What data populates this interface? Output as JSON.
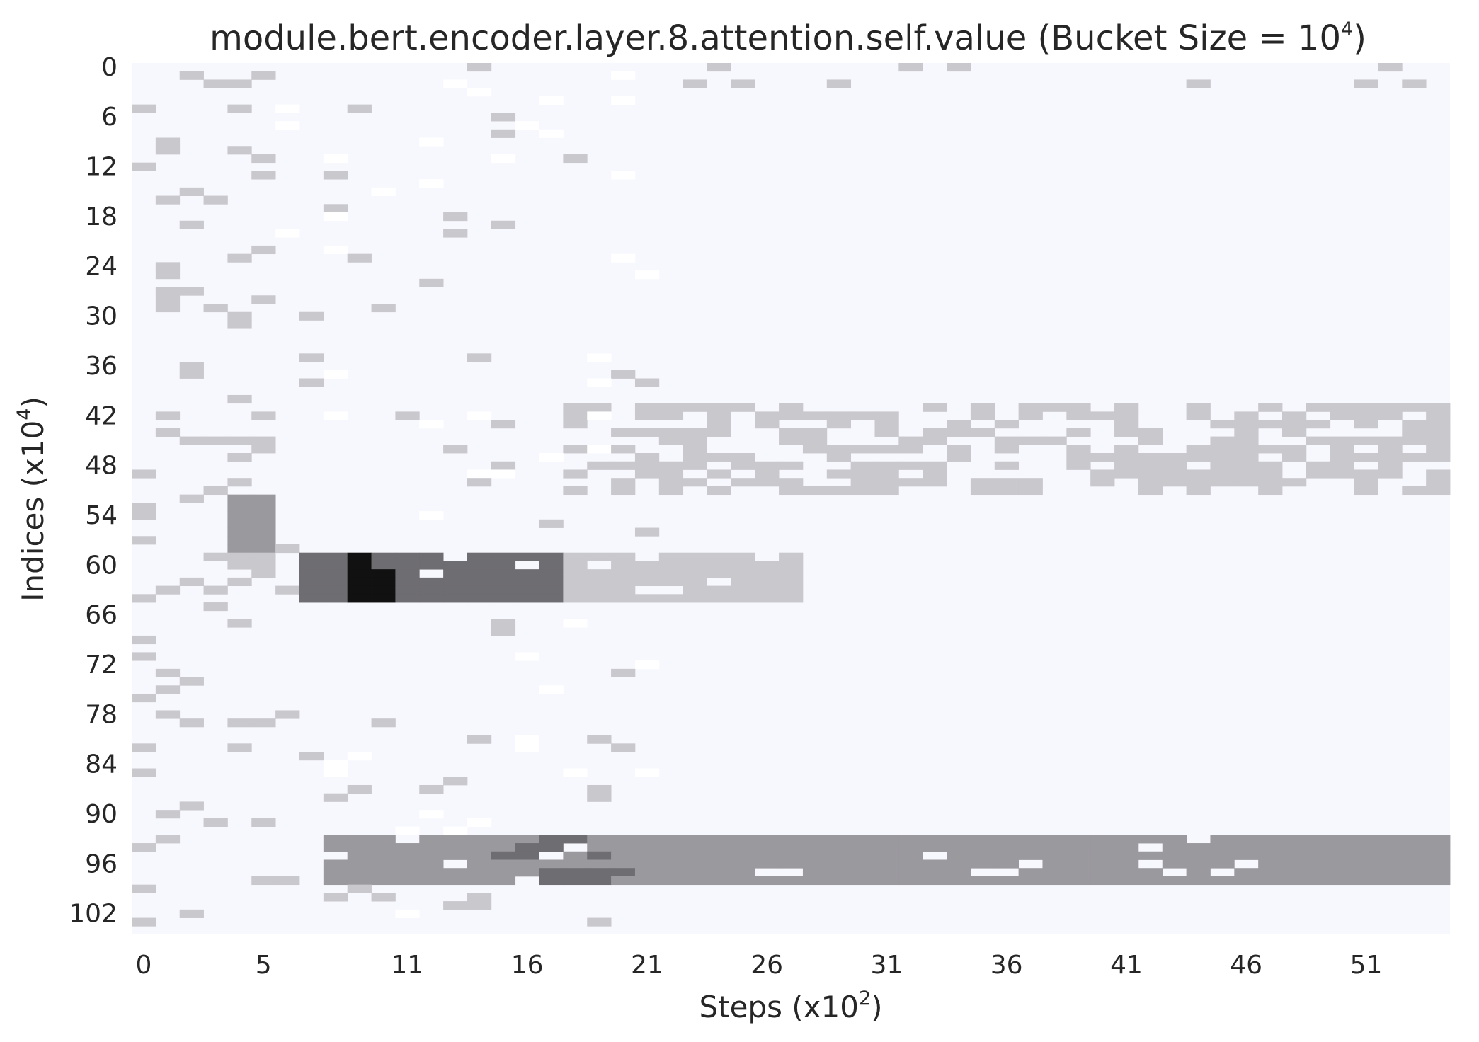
{
  "chart_data": {
    "type": "heatmap",
    "title": "module.bert.encoder.layer.8.attention.self.value (Bucket Size = 10",
    "title_exponent": "4",
    "title_suffix": ")",
    "xlabel": "Steps (x10",
    "xlabel_exponent": "2",
    "xlabel_suffix": ")",
    "ylabel": "Indices (x10",
    "ylabel_exponent": "4",
    "ylabel_suffix": ")",
    "x_tick_labels": [
      "0",
      "5",
      "11",
      "16",
      "21",
      "26",
      "31",
      "36",
      "41",
      "46",
      "51"
    ],
    "y_tick_labels": [
      "0",
      "6",
      "12",
      "18",
      "24",
      "30",
      "36",
      "42",
      "48",
      "54",
      "60",
      "66",
      "72",
      "78",
      "84",
      "90",
      "96",
      "102"
    ],
    "n_columns": 55,
    "n_rows": 105,
    "grid": false,
    "colorbar": false,
    "color_scale": {
      "background": "#f7f8fd",
      "light": "#c9c8cd",
      "mid": "#9a999e",
      "dark": "#6e6d71",
      "darkest": "#111111"
    },
    "intensity_bands": [
      {
        "region": "band",
        "rows": [
          93,
          98
        ],
        "columns": [
          8,
          54
        ],
        "level": "mid",
        "peak_columns": [
          15,
          20
        ],
        "peak_level": "dark"
      },
      {
        "region": "band",
        "rows": [
          59,
          64
        ],
        "columns": [
          7,
          17
        ],
        "level": "dark",
        "peak_columns": [
          9,
          10
        ],
        "peak_level": "darkest"
      },
      {
        "region": "band",
        "rows": [
          59,
          64
        ],
        "columns": [
          18,
          27
        ],
        "level": "light"
      },
      {
        "region": "band",
        "rows": [
          41,
          51
        ],
        "columns": [
          18,
          54
        ],
        "level": "light"
      },
      {
        "region": "band",
        "rows": [
          52,
          58
        ],
        "columns": [
          4,
          5
        ],
        "level": "mid"
      },
      {
        "region": "scatter",
        "rows": [
          0,
          104
        ],
        "columns": [
          0,
          5
        ],
        "level": "light"
      }
    ]
  }
}
